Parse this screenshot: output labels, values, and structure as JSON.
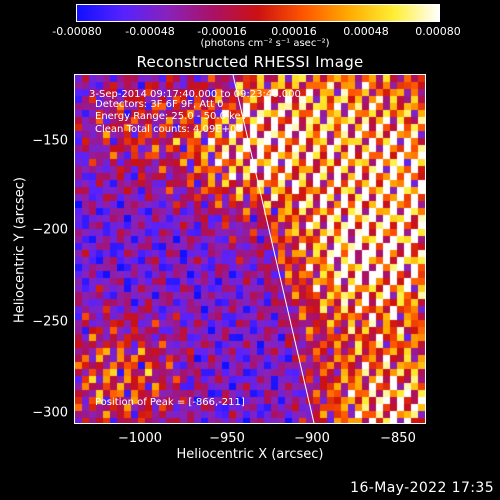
{
  "colorbar": {
    "ticks": [
      "-0.00080",
      "-0.00048",
      "-0.00016",
      "0.00016",
      "0.00048",
      "0.00080"
    ],
    "units": "(photons cm⁻² s⁻¹ asec⁻²)",
    "stops": [
      "#1010ff",
      "#5522ff",
      "#8822bb",
      "#aa1166",
      "#cc1111",
      "#ff5500",
      "#ffaa00",
      "#ffee33",
      "#ffffff"
    ]
  },
  "plot": {
    "title": "Reconstructed RHESSI Image",
    "info_lines": [
      "3-Sep-2014 09:17:40.000 to 09:23:40.000",
      "Detectors: 3F 6F 9F, Att 0",
      "Energy Range: 25.0 - 50.0 keV",
      "Clean     Total counts: 4.09E+03"
    ],
    "peak_label": "Position of Peak = [-866,-211]",
    "xlabel": "Heliocentric X (arcsec)",
    "ylabel": "Heliocentric Y (arcsec)",
    "x_ticks": [
      "−1000",
      "−950",
      "−900",
      "−850"
    ],
    "y_ticks": [
      "−150",
      "−200",
      "−250",
      "−300"
    ]
  },
  "footer": {
    "datetime": "16-May-2022 17:35"
  }
}
